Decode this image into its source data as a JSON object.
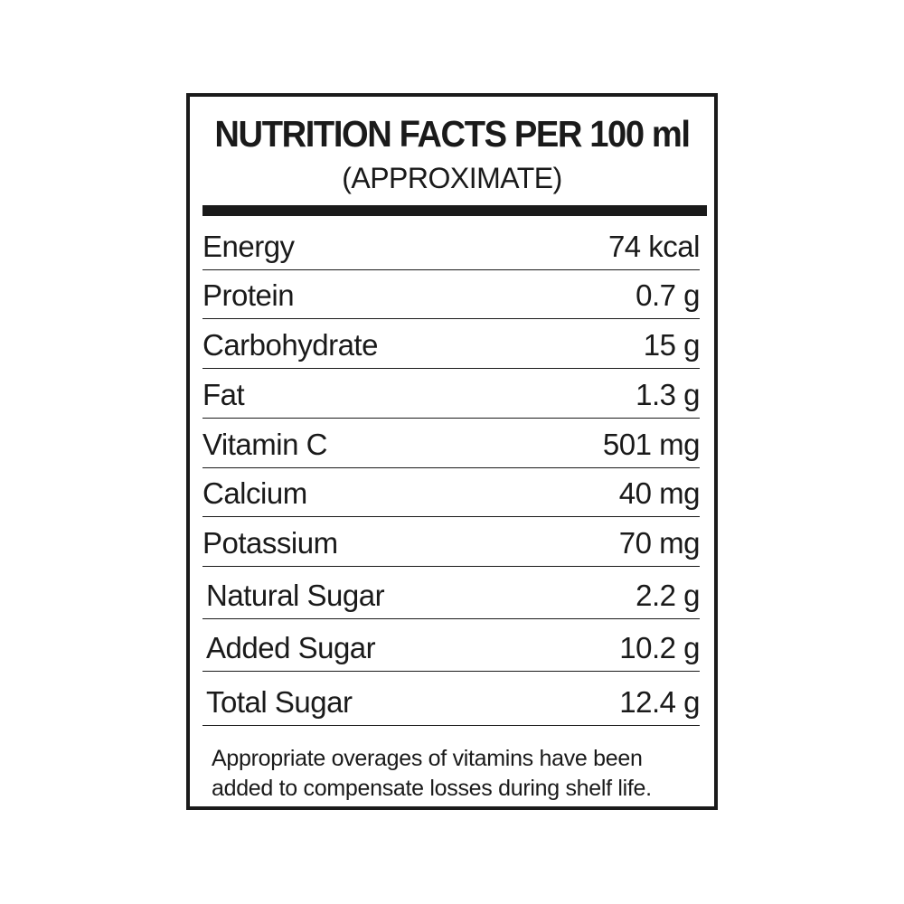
{
  "label": {
    "title": "NUTRITION FACTS PER 100 ml",
    "subtitle": "(APPROXIMATE)",
    "rows": [
      {
        "name": "Energy",
        "value": "74 kcal"
      },
      {
        "name": "Protein",
        "value": "0.7 g"
      },
      {
        "name": "Carbohydrate",
        "value": "15 g"
      },
      {
        "name": "Fat",
        "value": "1.3 g"
      },
      {
        "name": "Vitamin C",
        "value": "501 mg"
      },
      {
        "name": "Calcium",
        "value": "40 mg"
      },
      {
        "name": "Potassium",
        "value": "70 mg"
      },
      {
        "name": "Natural Sugar",
        "value": "2.2 g"
      },
      {
        "name": "Added Sugar",
        "value": "10.2 g"
      },
      {
        "name": "Total Sugar",
        "value": "12.4 g"
      }
    ],
    "footnote_line1": "Appropriate overages of vitamins have been",
    "footnote_line2": "added to compensate losses during shelf life."
  }
}
